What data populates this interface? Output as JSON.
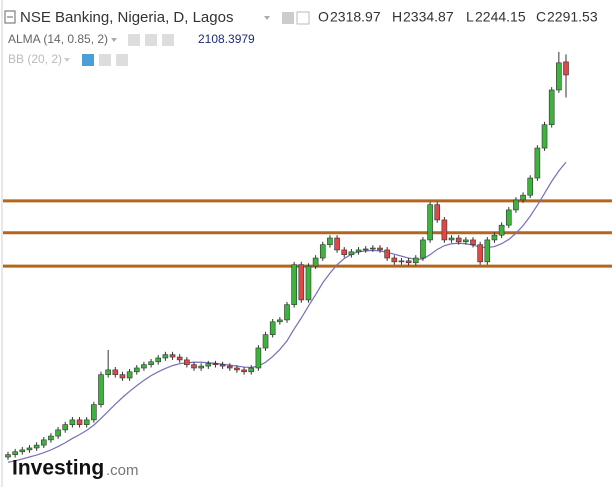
{
  "chart_data": {
    "type": "candlestick",
    "title": "NSE Banking, Nigeria, D, Lagos",
    "ohlc_prefixes": [
      "O",
      "H",
      "L",
      "C"
    ],
    "open": [
      1489,
      1494,
      1500,
      1504,
      1508,
      1514,
      1525,
      1533,
      1546,
      1557,
      1567,
      1557,
      1567,
      1599,
      1662,
      1672,
      1662,
      1655,
      1668,
      1676,
      1683,
      1689,
      1697,
      1704,
      1699,
      1693,
      1683,
      1676,
      1680,
      1685,
      1683,
      1680,
      1676,
      1672,
      1668,
      1676,
      1718,
      1746,
      1773,
      1777,
      1809,
      1893,
      1819,
      1890,
      1907,
      1935,
      1949,
      1924,
      1914,
      1920,
      1924,
      1926,
      1928,
      1924,
      1907,
      1899,
      1901,
      1897,
      1907,
      1945,
      2019,
      1987,
      1945,
      1949,
      1941,
      1945,
      1935,
      1899,
      1945,
      1955,
      1976,
      2008,
      2029,
      2039,
      2075,
      2138,
      2187,
      2260,
      2318.97
    ],
    "high": [
      1500,
      1506,
      1510,
      1514,
      1520,
      1531,
      1539,
      1552,
      1563,
      1573,
      1573,
      1573,
      1605,
      1668,
      1714,
      1678,
      1668,
      1674,
      1682,
      1689,
      1695,
      1703,
      1710,
      1710,
      1705,
      1699,
      1689,
      1686,
      1691,
      1691,
      1689,
      1686,
      1682,
      1678,
      1682,
      1724,
      1752,
      1779,
      1783,
      1815,
      1899,
      1899,
      1896,
      1913,
      1941,
      1955,
      1955,
      1930,
      1926,
      1930,
      1932,
      1934,
      1934,
      1930,
      1913,
      1907,
      1907,
      1913,
      1951,
      2025,
      2025,
      1993,
      1955,
      1955,
      1951,
      1951,
      1941,
      1951,
      1961,
      1982,
      2014,
      2035,
      2045,
      2081,
      2144,
      2193,
      2266,
      2340,
      2334.87
    ],
    "low": [
      1483,
      1488,
      1494,
      1498,
      1502,
      1508,
      1519,
      1527,
      1540,
      1551,
      1551,
      1551,
      1561,
      1593,
      1656,
      1656,
      1649,
      1649,
      1662,
      1670,
      1677,
      1683,
      1691,
      1693,
      1687,
      1677,
      1670,
      1670,
      1674,
      1677,
      1674,
      1670,
      1666,
      1662,
      1662,
      1670,
      1712,
      1740,
      1767,
      1771,
      1803,
      1813,
      1813,
      1884,
      1901,
      1929,
      1918,
      1908,
      1908,
      1914,
      1918,
      1920,
      1918,
      1901,
      1893,
      1893,
      1891,
      1891,
      1901,
      1939,
      1981,
      1939,
      1939,
      1935,
      1935,
      1929,
      1893,
      1893,
      1939,
      1949,
      1970,
      2002,
      2023,
      2033,
      2069,
      2132,
      2181,
      2254,
      2244.15
    ],
    "close": [
      1494,
      1500,
      1504,
      1508,
      1514,
      1525,
      1533,
      1546,
      1557,
      1567,
      1557,
      1567,
      1599,
      1662,
      1672,
      1662,
      1655,
      1668,
      1676,
      1683,
      1689,
      1697,
      1704,
      1699,
      1693,
      1683,
      1676,
      1680,
      1685,
      1683,
      1680,
      1676,
      1672,
      1668,
      1676,
      1718,
      1746,
      1773,
      1777,
      1809,
      1893,
      1819,
      1890,
      1907,
      1935,
      1949,
      1924,
      1914,
      1920,
      1924,
      1926,
      1928,
      1924,
      1907,
      1899,
      1901,
      1897,
      1907,
      1945,
      2019,
      1987,
      1945,
      1949,
      1941,
      1945,
      1935,
      1899,
      1945,
      1955,
      1976,
      2008,
      2029,
      2039,
      2075,
      2138,
      2187,
      2260,
      2317,
      2291.53
    ],
    "up_color": "#3db33d",
    "down_color": "#e04848",
    "alma": {
      "name": "ALMA (14, 0.85, 2)",
      "color": "#7670b8",
      "values": [
        1478,
        1481,
        1485,
        1489,
        1493,
        1498,
        1504,
        1511,
        1519,
        1528,
        1536,
        1545,
        1556,
        1570,
        1585,
        1600,
        1614,
        1627,
        1639,
        1650,
        1660,
        1668,
        1675,
        1681,
        1685,
        1687,
        1688,
        1688,
        1687,
        1686,
        1684,
        1682,
        1680,
        1678,
        1677,
        1680,
        1688,
        1700,
        1715,
        1733,
        1758,
        1781,
        1806,
        1830,
        1855,
        1875,
        1893,
        1906,
        1915,
        1920,
        1922,
        1923,
        1922,
        1919,
        1915,
        1911,
        1907,
        1904,
        1905,
        1914,
        1925,
        1933,
        1937,
        1938,
        1937,
        1934,
        1930,
        1929,
        1931,
        1937,
        1946,
        1959,
        1975,
        1995,
        2018,
        2043,
        2068,
        2090,
        2108.3979
      ]
    },
    "bb": {
      "name": "BB (20, 2)"
    },
    "levels": {
      "values": [
        2027,
        1960,
        1890
      ],
      "color": "#b5661c"
    },
    "ylim": [
      1426,
      2449
    ],
    "logo": {
      "brand": "Investing",
      "suffix": ".com"
    }
  }
}
